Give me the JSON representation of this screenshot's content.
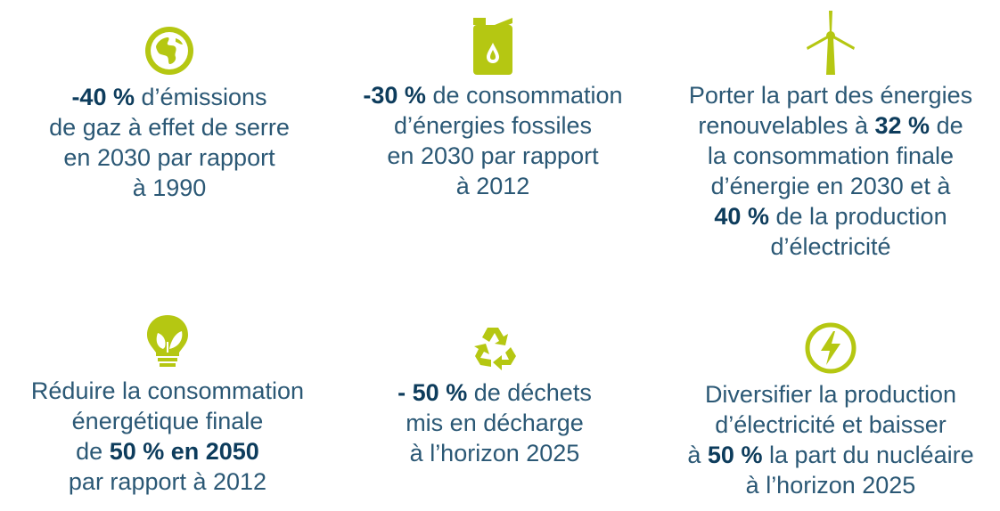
{
  "colors": {
    "icon": "#b5c712",
    "text": "#2b5875",
    "bold": "#0d3c5c"
  },
  "items": [
    {
      "icon": "globe-icon",
      "lines": [
        [
          {
            "t": "-40 %",
            "b": true
          },
          {
            "t": " d’émissions",
            "b": false
          }
        ],
        [
          {
            "t": "de gaz à effet de serre",
            "b": false
          }
        ],
        [
          {
            "t": "en 2030 par rapport",
            "b": false
          }
        ],
        [
          {
            "t": "à 1990",
            "b": false
          }
        ]
      ]
    },
    {
      "icon": "fuel-can-icon",
      "lines": [
        [
          {
            "t": "-30 %",
            "b": true
          },
          {
            "t": " de consommation",
            "b": false
          }
        ],
        [
          {
            "t": "d’énergies fossiles",
            "b": false
          }
        ],
        [
          {
            "t": "en 2030 par rapport",
            "b": false
          }
        ],
        [
          {
            "t": "à 2012",
            "b": false
          }
        ]
      ]
    },
    {
      "icon": "wind-turbine-icon",
      "lines": [
        [
          {
            "t": "Porter la part des énergies",
            "b": false
          }
        ],
        [
          {
            "t": "renouvelables à ",
            "b": false
          },
          {
            "t": "32 %",
            "b": true
          },
          {
            "t": " de",
            "b": false
          }
        ],
        [
          {
            "t": "la consommation finale",
            "b": false
          }
        ],
        [
          {
            "t": "d’énergie en 2030 et à",
            "b": false
          }
        ],
        [
          {
            "t": "40 %",
            "b": true
          },
          {
            "t": " de la production",
            "b": false
          }
        ],
        [
          {
            "t": "d’électricité",
            "b": false
          }
        ]
      ]
    },
    {
      "icon": "lightbulb-leaf-icon",
      "lines": [
        [
          {
            "t": "Réduire la consommation",
            "b": false
          }
        ],
        [
          {
            "t": "énergétique finale",
            "b": false
          }
        ],
        [
          {
            "t": "de ",
            "b": false
          },
          {
            "t": "50 % en 2050",
            "b": true
          }
        ],
        [
          {
            "t": "par rapport à 2012",
            "b": false
          }
        ]
      ]
    },
    {
      "icon": "recycle-icon",
      "lines": [
        [
          {
            "t": "- 50 %",
            "b": true
          },
          {
            "t": " de déchets",
            "b": false
          }
        ],
        [
          {
            "t": "mis en décharge",
            "b": false
          }
        ],
        [
          {
            "t": "à l’horizon 2025",
            "b": false
          }
        ]
      ]
    },
    {
      "icon": "lightning-bolt-icon",
      "lines": [
        [
          {
            "t": "Diversifier la production",
            "b": false
          }
        ],
        [
          {
            "t": "d’électricité et baisser",
            "b": false
          }
        ],
        [
          {
            "t": "à ",
            "b": false
          },
          {
            "t": "50 %",
            "b": true
          },
          {
            "t": " la part du nucléaire",
            "b": false
          }
        ],
        [
          {
            "t": "à l’horizon 2025",
            "b": false
          }
        ]
      ]
    }
  ]
}
